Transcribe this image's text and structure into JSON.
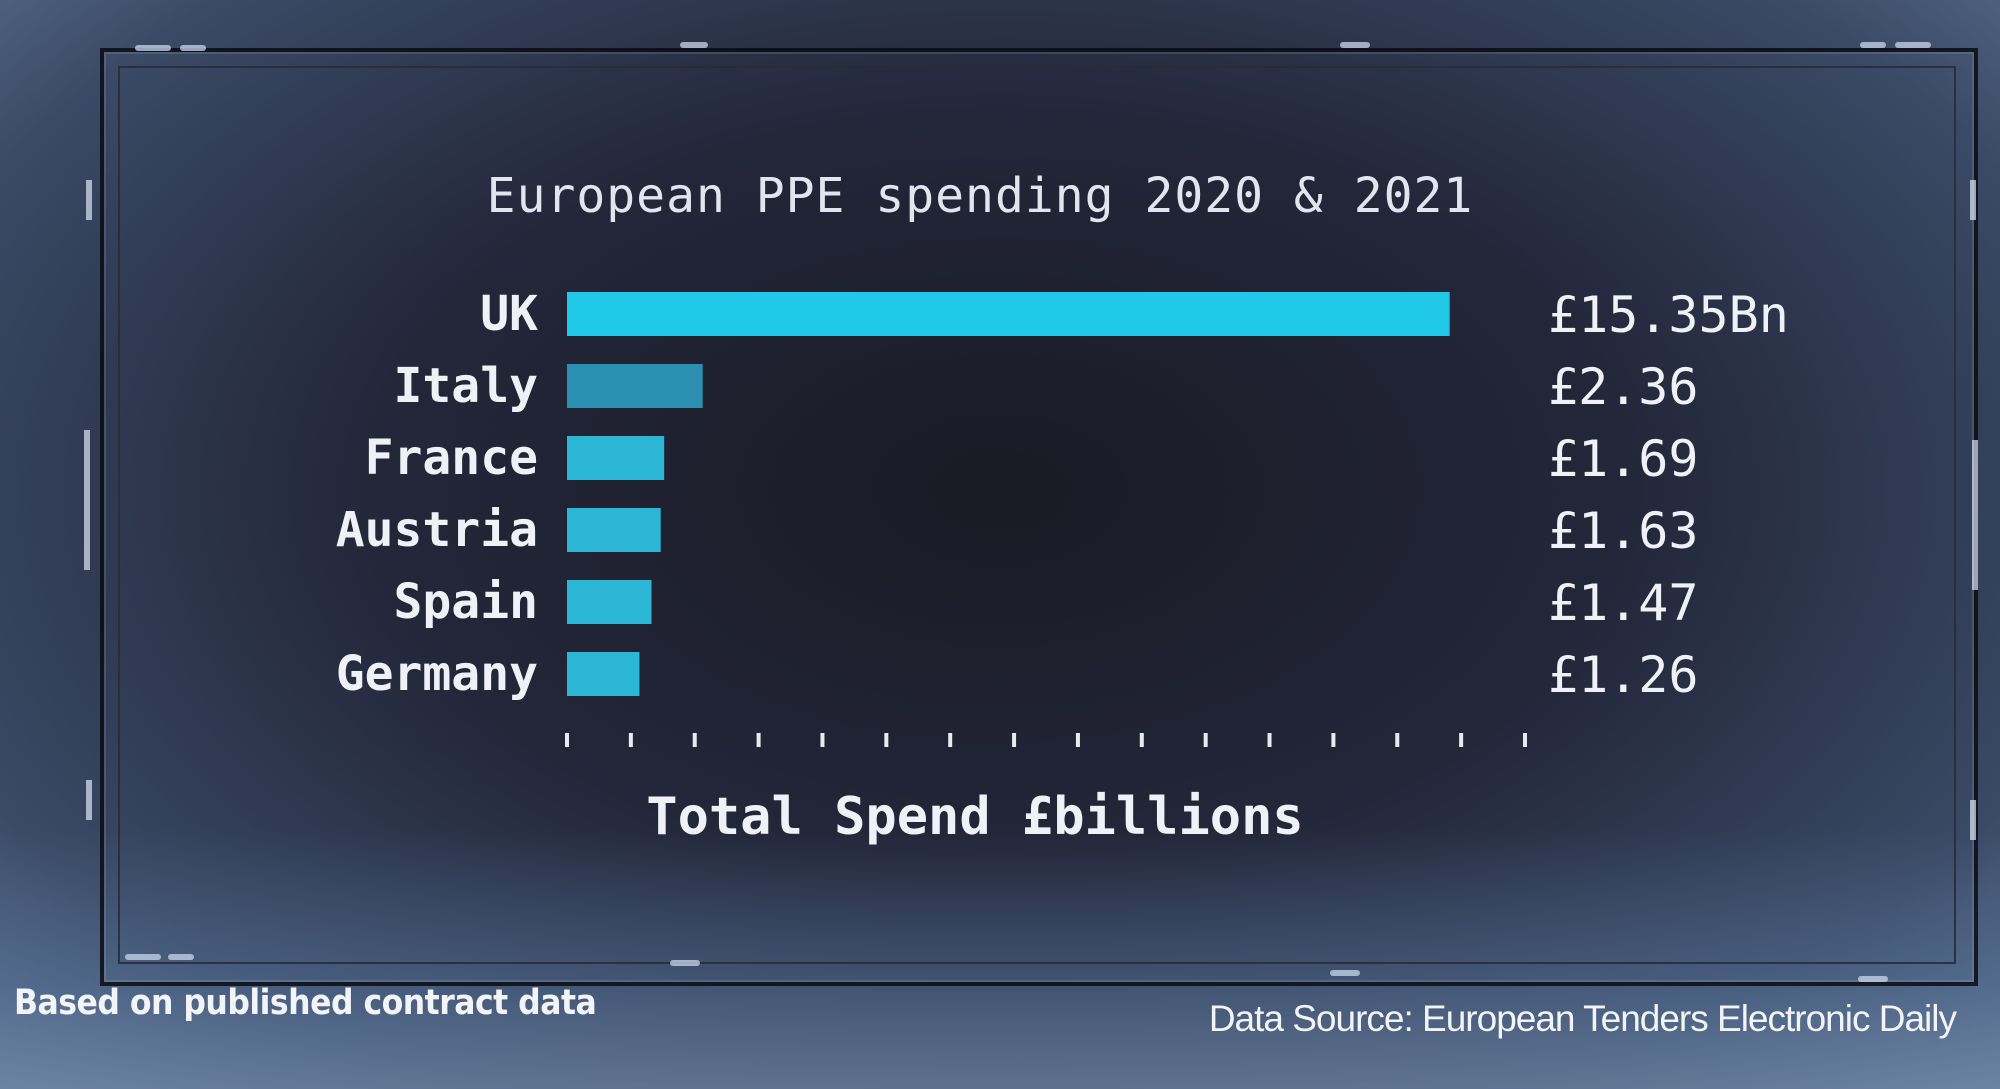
{
  "chart_data": {
    "type": "bar",
    "orientation": "horizontal",
    "title": "European PPE spending 2020 & 2021",
    "xlabel": "Total Spend £billions",
    "ylabel": "",
    "categories": [
      "UK",
      "Italy",
      "France",
      "Austria",
      "Spain",
      "Germany"
    ],
    "values": [
      15.35,
      2.36,
      1.69,
      1.63,
      1.47,
      1.26
    ],
    "value_labels": [
      "£15.35Bn",
      "£2.36",
      "£1.69",
      "£1.63",
      "£1.47",
      "£1.26"
    ],
    "xlim": [
      0,
      16
    ],
    "tick_count": 16,
    "grid": false,
    "legend": "none",
    "colors": {
      "highlight_bar": "#1ec8e6",
      "bar": "#2bb6d6",
      "second_bar": "#2a8fb0",
      "text": "#eef2f6",
      "background": "#1c1e28"
    }
  },
  "footer": {
    "left_note": "Based on published contract data",
    "source": "Data Source: European Tenders Electronic Daily"
  }
}
